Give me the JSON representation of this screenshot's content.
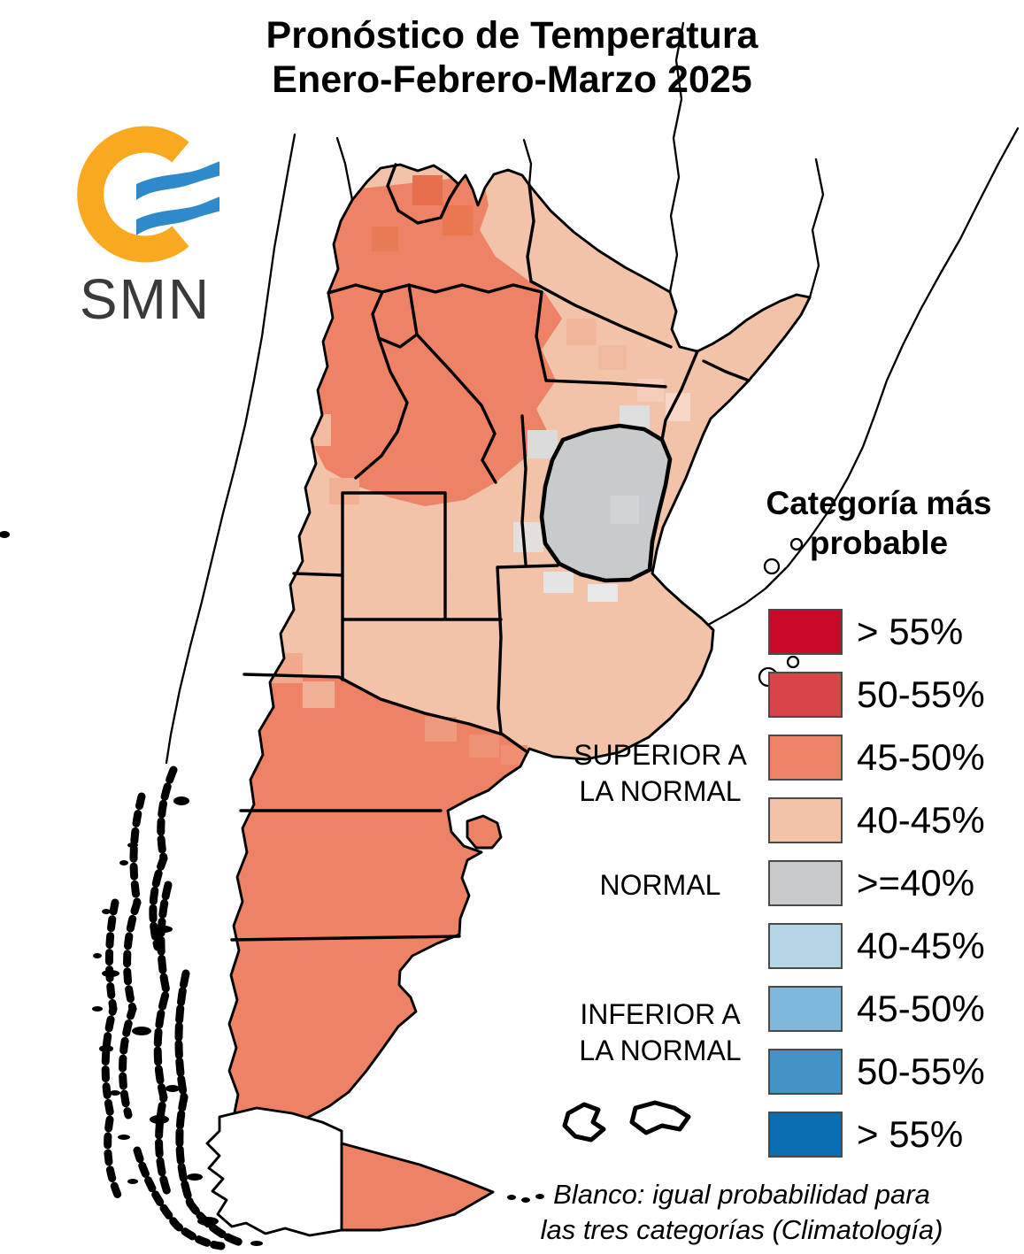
{
  "title": {
    "line1": "Pronóstico de Temperatura",
    "line2": "Enero-Febrero-Marzo 2025"
  },
  "logo": {
    "text": "SMN",
    "ring_color": "#F8A91F",
    "wave_color": "#2E8ACA",
    "text_color": "#3A3A3A"
  },
  "legend": {
    "title_line1": "Categoría más",
    "title_line2": "probable",
    "items": [
      {
        "label": "> 55%",
        "color": "#C60A27",
        "group": "SUPERIOR A LA NORMAL"
      },
      {
        "label": "50-55%",
        "color": "#D64548",
        "group": "SUPERIOR A LA NORMAL"
      },
      {
        "label": "45-50%",
        "color": "#ED8265",
        "group": "SUPERIOR A LA NORMAL"
      },
      {
        "label": "40-45%",
        "color": "#F2C3A9",
        "group": "SUPERIOR A LA NORMAL"
      },
      {
        "label": ">=40%",
        "color": "#C9CACB",
        "group": "NORMAL"
      },
      {
        "label": "40-45%",
        "color": "#B5D5E7",
        "group": "INFERIOR A LA NORMAL"
      },
      {
        "label": "45-50%",
        "color": "#7FB8DA",
        "group": "INFERIOR A LA NORMAL"
      },
      {
        "label": "50-55%",
        "color": "#4493C6",
        "group": "INFERIOR A LA NORMAL"
      },
      {
        "label": "> 55%",
        "color": "#0A6DB1",
        "group": "INFERIOR A LA NORMAL"
      }
    ],
    "groups": {
      "superior": {
        "line1": "SUPERIOR A",
        "line2": "LA NORMAL"
      },
      "normal": {
        "line1": "NORMAL",
        "line2": ""
      },
      "inferior": {
        "line1": "INFERIOR A",
        "line2": "LA NORMAL"
      }
    }
  },
  "note": {
    "line1": "Blanco: igual probabilidad para",
    "line2": "las tres categorías (Climatología)"
  },
  "map": {
    "border_color": "#000000",
    "regions": [
      {
        "name": "noroeste-centro-norte",
        "category": "SUPERIOR A LA NORMAL",
        "probability": "45-50%",
        "color": "#ED8265"
      },
      {
        "name": "centro-noreste-litoral",
        "category": "SUPERIOR A LA NORMAL",
        "probability": "40-45%",
        "color": "#F2C3A9"
      },
      {
        "name": "entre-rios-este",
        "category": "NORMAL",
        "probability": ">=40%",
        "color": "#C9CACB"
      },
      {
        "name": "patagonia-sur",
        "category": "SUPERIOR A LA NORMAL",
        "probability": "45-50%",
        "color": "#ED8265"
      }
    ]
  }
}
